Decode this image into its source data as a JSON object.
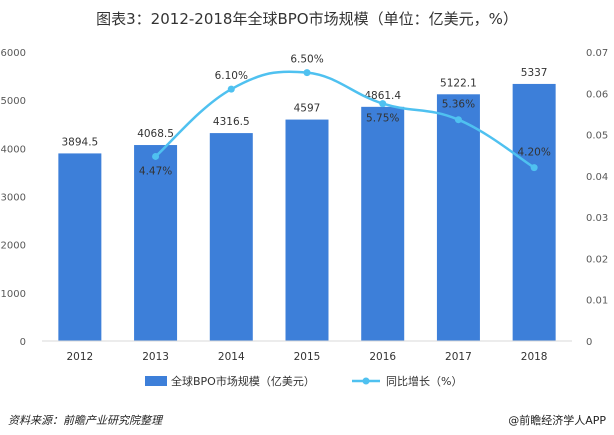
{
  "chart_data": {
    "type": "bar",
    "title": "图表3：2012-2018年全球BPO市场规模（单位：亿美元，%）",
    "categories": [
      "2012",
      "2013",
      "2014",
      "2015",
      "2016",
      "2017",
      "2018"
    ],
    "series": [
      {
        "name": "全球BPO市场规模（亿美元）",
        "type": "bar",
        "axis": "left",
        "values": [
          3894.5,
          4068.5,
          4316.5,
          4597,
          4861.4,
          5122.1,
          5337
        ],
        "labels": [
          "3894.5",
          "4068.5",
          "4316.5",
          "4597",
          "4861.4",
          "5122.1",
          "5337"
        ],
        "color": "#3d7fd9"
      },
      {
        "name": "同比增长（%）",
        "type": "line",
        "axis": "right",
        "values": [
          null,
          0.0447,
          0.061,
          0.065,
          0.0575,
          0.0536,
          0.042
        ],
        "labels": [
          "",
          "4.47%",
          "6.10%",
          "6.50%",
          "5.75%",
          "5.36%",
          "4.20%"
        ],
        "color": "#4fc1f0"
      }
    ],
    "left_axis": {
      "min": 0,
      "max": 6000,
      "ticks": [
        "0",
        "1000",
        "2000",
        "3000",
        "4000",
        "5000",
        "6000"
      ]
    },
    "right_axis": {
      "min": 0,
      "max": 0.07,
      "ticks": [
        "0",
        "0.01",
        "0.02",
        "0.03",
        "0.04",
        "0.05",
        "0.06",
        "0.07"
      ]
    },
    "grid": false,
    "legend_position": "bottom"
  },
  "footer": {
    "source": "资料来源：前瞻产业研究院整理",
    "brand": "@前瞻经济学人APP"
  },
  "watermark": "前瞻产业研究院"
}
